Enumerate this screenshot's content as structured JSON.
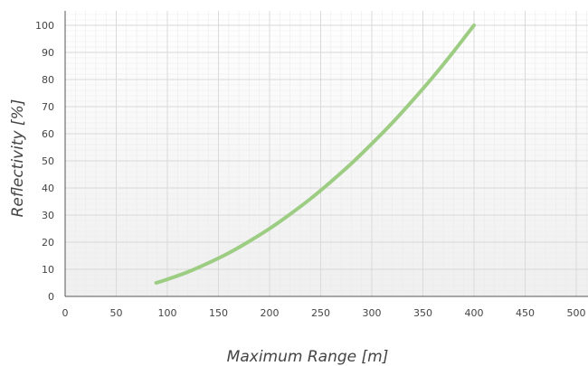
{
  "chart_data": {
    "type": "line",
    "xlabel": "Maximum Range [m]",
    "ylabel": "Reflectivity [%]",
    "xlim": [
      0,
      500
    ],
    "ylim": [
      0,
      100
    ],
    "x_ticks": [
      0,
      50,
      100,
      150,
      200,
      250,
      300,
      350,
      400,
      450,
      500
    ],
    "y_ticks": [
      0,
      10,
      20,
      30,
      40,
      50,
      60,
      70,
      80,
      90,
      100
    ],
    "grid": true,
    "legend": "none",
    "series": [
      {
        "color": "#9dcd83",
        "x": [
          89,
          100,
          120,
          140,
          160,
          180,
          200,
          220,
          240,
          260,
          280,
          300,
          320,
          340,
          360,
          380,
          400
        ],
        "y": [
          5,
          6.3,
          9,
          12.3,
          16,
          20.3,
          25,
          30.3,
          36,
          42.3,
          49,
          56.3,
          64,
          72.3,
          81,
          90.3,
          100
        ]
      }
    ]
  }
}
